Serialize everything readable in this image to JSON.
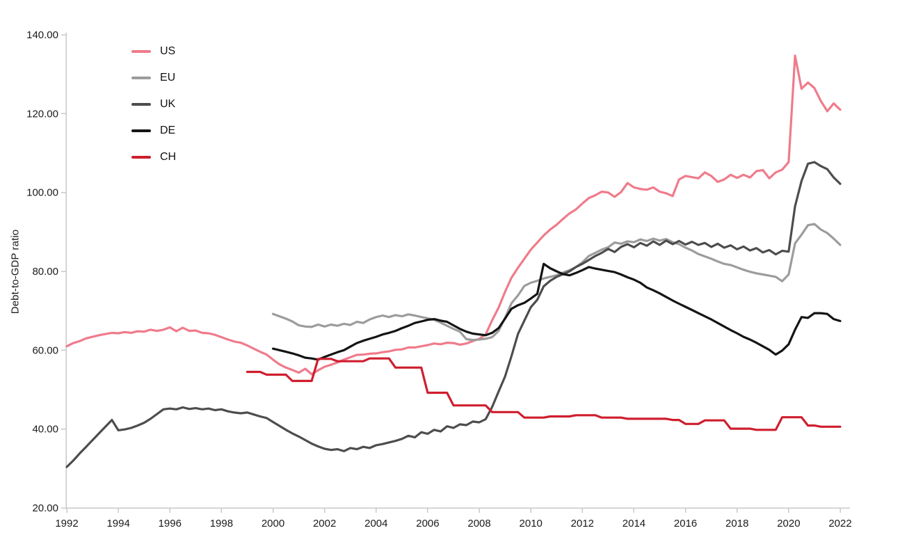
{
  "page": {
    "background": "#ffffff",
    "text_color": "#1a1a1a",
    "axis_color": "#c8c8c8"
  },
  "chart_data": {
    "type": "line",
    "title": "",
    "xlabel": "",
    "ylabel": "Debt-to-GDP ratio",
    "grid": false,
    "legend_position": "top-left",
    "x_unit": "year (quarterly data)",
    "xlim": [
      1991.9,
      2022.5
    ],
    "ylim": [
      20,
      140
    ],
    "x_ticks": [
      1992,
      1994,
      1996,
      1998,
      2000,
      2002,
      2004,
      2006,
      2008,
      2010,
      2012,
      2014,
      2016,
      2018,
      2020,
      2022
    ],
    "x_tick_labels": [
      "1992",
      "1994",
      "1996",
      "1998",
      "2000",
      "2002",
      "2004",
      "2006",
      "2008",
      "2010",
      "2012",
      "2014",
      "2016",
      "2018",
      "2020",
      "2022"
    ],
    "y_ticks": [
      20,
      40,
      60,
      80,
      100,
      120,
      140
    ],
    "y_tick_labels": [
      "20.00",
      "40.00",
      "60.00",
      "80.00",
      "100.00",
      "120.00",
      "140.00"
    ],
    "series": [
      {
        "name": "US",
        "color": "#ef7b8b",
        "start": 1992.0,
        "step": 0.25,
        "values": [
          61.0,
          61.8,
          62.3,
          63.0,
          63.4,
          63.8,
          64.1,
          64.4,
          64.3,
          64.6,
          64.4,
          64.8,
          64.7,
          65.2,
          64.9,
          65.2,
          65.8,
          64.8,
          65.7,
          64.9,
          65.0,
          64.4,
          64.3,
          63.9,
          63.3,
          62.7,
          62.2,
          61.9,
          61.2,
          60.4,
          59.6,
          58.9,
          57.6,
          56.4,
          55.6,
          55.0,
          54.3,
          55.3,
          53.9,
          54.9,
          55.8,
          56.3,
          56.9,
          57.6,
          58.2,
          58.8,
          58.9,
          59.1,
          59.2,
          59.5,
          59.7,
          60.1,
          60.2,
          60.7,
          60.7,
          61.0,
          61.3,
          61.7,
          61.5,
          61.9,
          61.8,
          61.4,
          61.7,
          62.3,
          62.9,
          64.0,
          67.6,
          70.8,
          74.8,
          78.4,
          80.9,
          83.2,
          85.5,
          87.3,
          89.1,
          90.6,
          91.8,
          93.3,
          94.7,
          95.7,
          97.2,
          98.6,
          99.3,
          100.2,
          100.0,
          98.9,
          100.1,
          102.4,
          101.3,
          100.9,
          100.7,
          101.3,
          100.2,
          99.8,
          99.1,
          103.3,
          104.2,
          103.9,
          103.6,
          105.1,
          104.2,
          102.7,
          103.3,
          104.5,
          103.7,
          104.5,
          103.8,
          105.4,
          105.7,
          103.6,
          105.1,
          105.8,
          107.7,
          134.7,
          126.3,
          127.9,
          126.5,
          123.2,
          120.6,
          122.6,
          121.0
        ]
      },
      {
        "name": "EU",
        "color": "#9c9c9c",
        "start": 2000.0,
        "step": 0.25,
        "values": [
          69.2,
          68.6,
          68.0,
          67.3,
          66.3,
          66.0,
          65.9,
          66.5,
          66.0,
          66.5,
          66.2,
          66.7,
          66.4,
          67.2,
          66.9,
          67.8,
          68.4,
          68.8,
          68.4,
          68.9,
          68.6,
          69.1,
          68.8,
          68.4,
          68.1,
          67.7,
          67.0,
          66.2,
          65.4,
          64.7,
          62.8,
          62.6,
          62.7,
          62.9,
          63.3,
          64.9,
          68.2,
          71.9,
          73.9,
          76.3,
          77.1,
          77.6,
          78.2,
          78.6,
          79.0,
          79.7,
          80.3,
          81.1,
          82.3,
          83.9,
          84.7,
          85.5,
          86.1,
          87.3,
          87.0,
          87.6,
          87.4,
          88.1,
          87.7,
          88.3,
          87.8,
          88.2,
          87.4,
          86.9,
          86.0,
          85.3,
          84.4,
          83.8,
          83.2,
          82.5,
          81.9,
          81.6,
          81.0,
          80.4,
          79.9,
          79.5,
          79.2,
          78.9,
          78.6,
          77.5,
          79.2,
          87.1,
          89.3,
          91.7,
          92.0,
          90.6,
          89.7,
          88.3,
          86.7
        ]
      },
      {
        "name": "UK",
        "color": "#4d4d4d",
        "start": 1992.0,
        "step": 0.25,
        "values": [
          30.4,
          32.0,
          33.8,
          35.5,
          37.2,
          38.9,
          40.6,
          42.3,
          39.7,
          39.9,
          40.3,
          40.9,
          41.6,
          42.6,
          43.8,
          45.0,
          45.2,
          45.0,
          45.5,
          45.1,
          45.3,
          45.0,
          45.2,
          44.8,
          45.0,
          44.5,
          44.2,
          44.0,
          44.2,
          43.7,
          43.2,
          42.8,
          41.8,
          40.8,
          39.8,
          38.9,
          38.1,
          37.2,
          36.3,
          35.6,
          35.0,
          34.7,
          34.9,
          34.4,
          35.2,
          34.9,
          35.5,
          35.2,
          35.9,
          36.2,
          36.6,
          37.0,
          37.5,
          38.3,
          37.9,
          39.2,
          38.8,
          39.8,
          39.4,
          40.7,
          40.3,
          41.2,
          41.0,
          41.9,
          41.7,
          42.5,
          45.6,
          49.5,
          53.3,
          58.5,
          64.1,
          67.5,
          70.9,
          72.8,
          76.2,
          77.6,
          78.6,
          79.3,
          80.0,
          81.1,
          81.9,
          82.9,
          83.9,
          84.7,
          85.7,
          84.9,
          86.2,
          86.9,
          86.1,
          87.2,
          86.5,
          87.6,
          86.7,
          87.8,
          86.9,
          87.7,
          86.8,
          87.5,
          86.7,
          87.2,
          86.2,
          87.0,
          86.0,
          86.6,
          85.6,
          86.3,
          85.3,
          85.9,
          84.8,
          85.4,
          84.3,
          85.2,
          85.0,
          96.5,
          102.9,
          107.3,
          107.7,
          106.7,
          105.9,
          103.8,
          102.2
        ]
      },
      {
        "name": "DE",
        "color": "#141414",
        "start": 2000.0,
        "step": 0.25,
        "values": [
          60.4,
          60.0,
          59.6,
          59.2,
          58.7,
          58.1,
          57.9,
          57.6,
          58.3,
          58.9,
          59.5,
          60.0,
          60.9,
          61.8,
          62.4,
          62.9,
          63.4,
          64.0,
          64.4,
          64.9,
          65.6,
          66.2,
          66.9,
          67.3,
          67.7,
          67.9,
          67.5,
          67.2,
          66.3,
          65.4,
          64.7,
          64.2,
          64.0,
          63.8,
          64.4,
          65.6,
          68.0,
          70.5,
          71.4,
          72.0,
          73.1,
          74.3,
          81.9,
          80.8,
          80.0,
          79.3,
          79.0,
          79.6,
          80.3,
          81.1,
          80.7,
          80.4,
          80.1,
          79.8,
          79.2,
          78.5,
          77.9,
          77.1,
          75.9,
          75.2,
          74.4,
          73.5,
          72.6,
          71.8,
          71.0,
          70.2,
          69.4,
          68.6,
          67.8,
          66.9,
          66.0,
          65.1,
          64.3,
          63.4,
          62.7,
          61.9,
          61.0,
          60.1,
          58.9,
          59.9,
          61.5,
          65.2,
          68.4,
          68.2,
          69.4,
          69.4,
          69.2,
          67.9,
          67.4
        ]
      },
      {
        "name": "CH",
        "color": "#cf1e2e",
        "start": 1999.0,
        "step": 0.25,
        "values": [
          54.5,
          54.5,
          54.5,
          53.8,
          53.8,
          53.8,
          53.8,
          52.2,
          52.2,
          52.2,
          52.2,
          57.8,
          57.8,
          57.8,
          57.2,
          57.2,
          57.2,
          57.2,
          57.2,
          57.9,
          57.9,
          57.9,
          57.9,
          55.6,
          55.6,
          55.6,
          55.6,
          55.6,
          49.2,
          49.2,
          49.2,
          49.2,
          46.0,
          46.0,
          46.0,
          46.0,
          46.0,
          46.0,
          44.3,
          44.3,
          44.3,
          44.3,
          44.3,
          42.9,
          42.9,
          42.9,
          42.9,
          43.2,
          43.2,
          43.2,
          43.2,
          43.5,
          43.5,
          43.5,
          43.5,
          42.9,
          42.9,
          42.9,
          42.9,
          42.6,
          42.6,
          42.6,
          42.6,
          42.6,
          42.6,
          42.6,
          42.3,
          42.3,
          41.3,
          41.3,
          41.3,
          42.2,
          42.2,
          42.2,
          42.2,
          40.1,
          40.1,
          40.1,
          40.1,
          39.8,
          39.8,
          39.8,
          39.8,
          43.0,
          43.0,
          43.0,
          43.0,
          40.9,
          40.9,
          40.6,
          40.6,
          40.6,
          40.6
        ]
      }
    ]
  }
}
